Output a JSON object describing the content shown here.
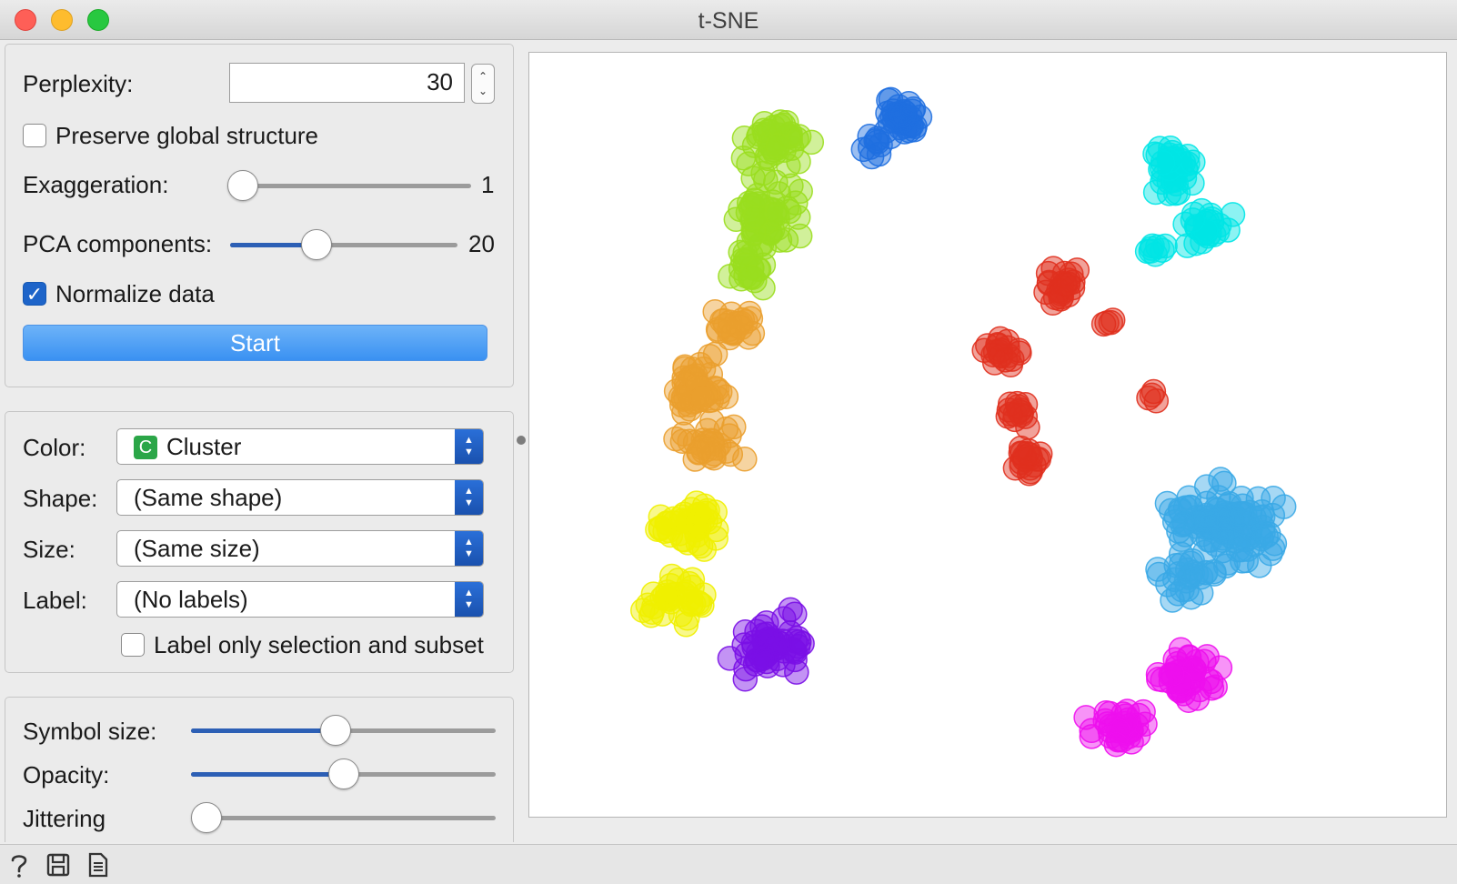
{
  "window": {
    "title": "t-SNE"
  },
  "embedding": {
    "perplexity_label": "Perplexity:",
    "perplexity_value": "30",
    "preserve_global_label": "Preserve global structure",
    "preserve_global_checked": false,
    "exaggeration_label": "Exaggeration:",
    "exaggeration_value": "1",
    "exaggeration_level": 0.0,
    "pca_label": "PCA components:",
    "pca_value": "20",
    "pca_level": 0.39,
    "normalize_label": "Normalize data",
    "normalize_checked": true,
    "start_label": "Start"
  },
  "attributes": {
    "color_label": "Color:",
    "color_badge": "C",
    "color_value": "Cluster",
    "shape_label": "Shape:",
    "shape_value": "(Same shape)",
    "size_label": "Size:",
    "size_value": "(Same size)",
    "label_label": "Label:",
    "label_value": "(No labels)",
    "label_only_selection": "Label only selection and subset",
    "label_only_selection_checked": false
  },
  "appearance": {
    "symbol_size_label": "Symbol size:",
    "symbol_size_level": 0.48,
    "opacity_label": "Opacity:",
    "opacity_level": 0.5,
    "jittering_label": "Jittering",
    "jittering_level": 0.0
  },
  "plot": {
    "colors": {
      "C1": "#1f6fe0",
      "C2": "#9ade1e",
      "C3": "#ea9f2e",
      "C4": "#f0f000",
      "C5": "#7a10e6",
      "C6": "#00e5e5",
      "C7": "#e0301e",
      "C8": "#3aa8e6",
      "C9": "#ee10ee"
    }
  },
  "statusbar": {
    "icons": [
      "help-icon",
      "save-icon",
      "report-icon"
    ]
  }
}
